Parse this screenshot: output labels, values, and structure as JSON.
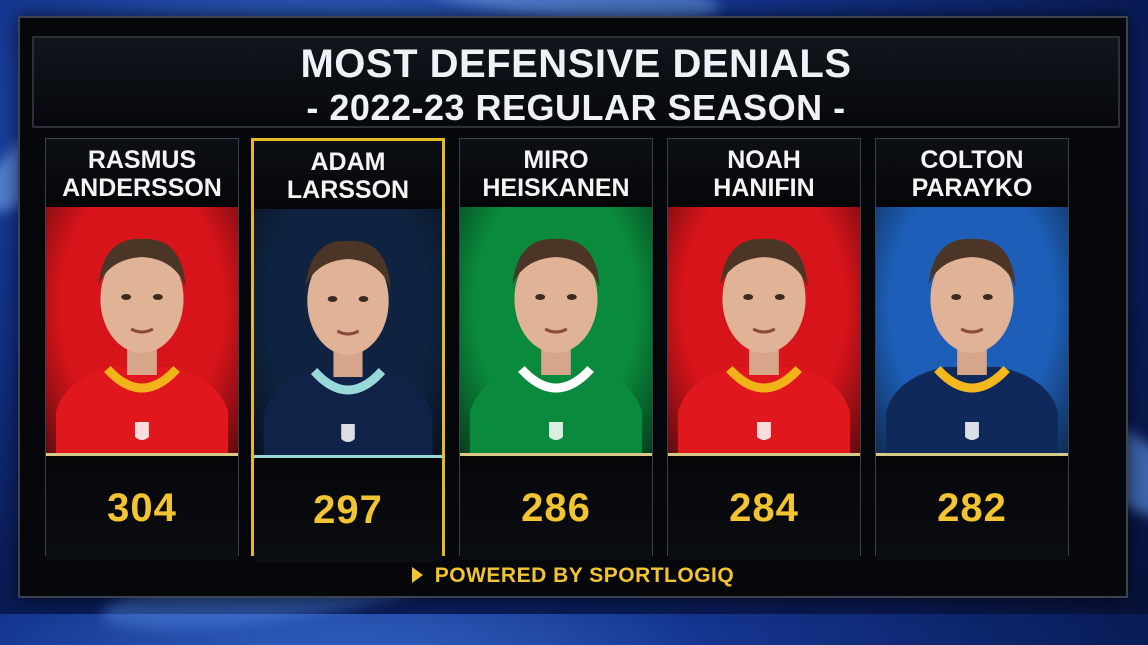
{
  "title": {
    "line1": "MOST DEFENSIVE DENIALS",
    "line2": "- 2022-23 REGULAR SEASON -"
  },
  "players": [
    {
      "first": "RASMUS",
      "last": "ANDERSSON",
      "value": "304",
      "team_color": "#d7141a",
      "jersey": "#e0171d",
      "trim": "#f2b219",
      "highlight": false
    },
    {
      "first": "ADAM",
      "last": "LARSSON",
      "value": "297",
      "team_color": "#0f2340",
      "jersey": "#102247",
      "trim": "#99d9d9",
      "highlight": true
    },
    {
      "first": "MIRO",
      "last": "HEISKANEN",
      "value": "286",
      "team_color": "#0a8a3c",
      "jersey": "#0a8a3c",
      "trim": "#ffffff",
      "highlight": false
    },
    {
      "first": "NOAH",
      "last": "HANIFIN",
      "value": "284",
      "team_color": "#d7141a",
      "jersey": "#e0171d",
      "trim": "#f2b219",
      "highlight": false
    },
    {
      "first": "COLTON",
      "last": "PARAYKO",
      "value": "282",
      "team_color": "#1d5fb8",
      "jersey": "#0f2a5a",
      "trim": "#f4b81f",
      "highlight": false
    }
  ],
  "footer": {
    "text": "POWERED BY SPORTLOGIQ"
  },
  "icons": {
    "footer": "play-triangle-icon",
    "photos": "player-headshot-icon"
  }
}
